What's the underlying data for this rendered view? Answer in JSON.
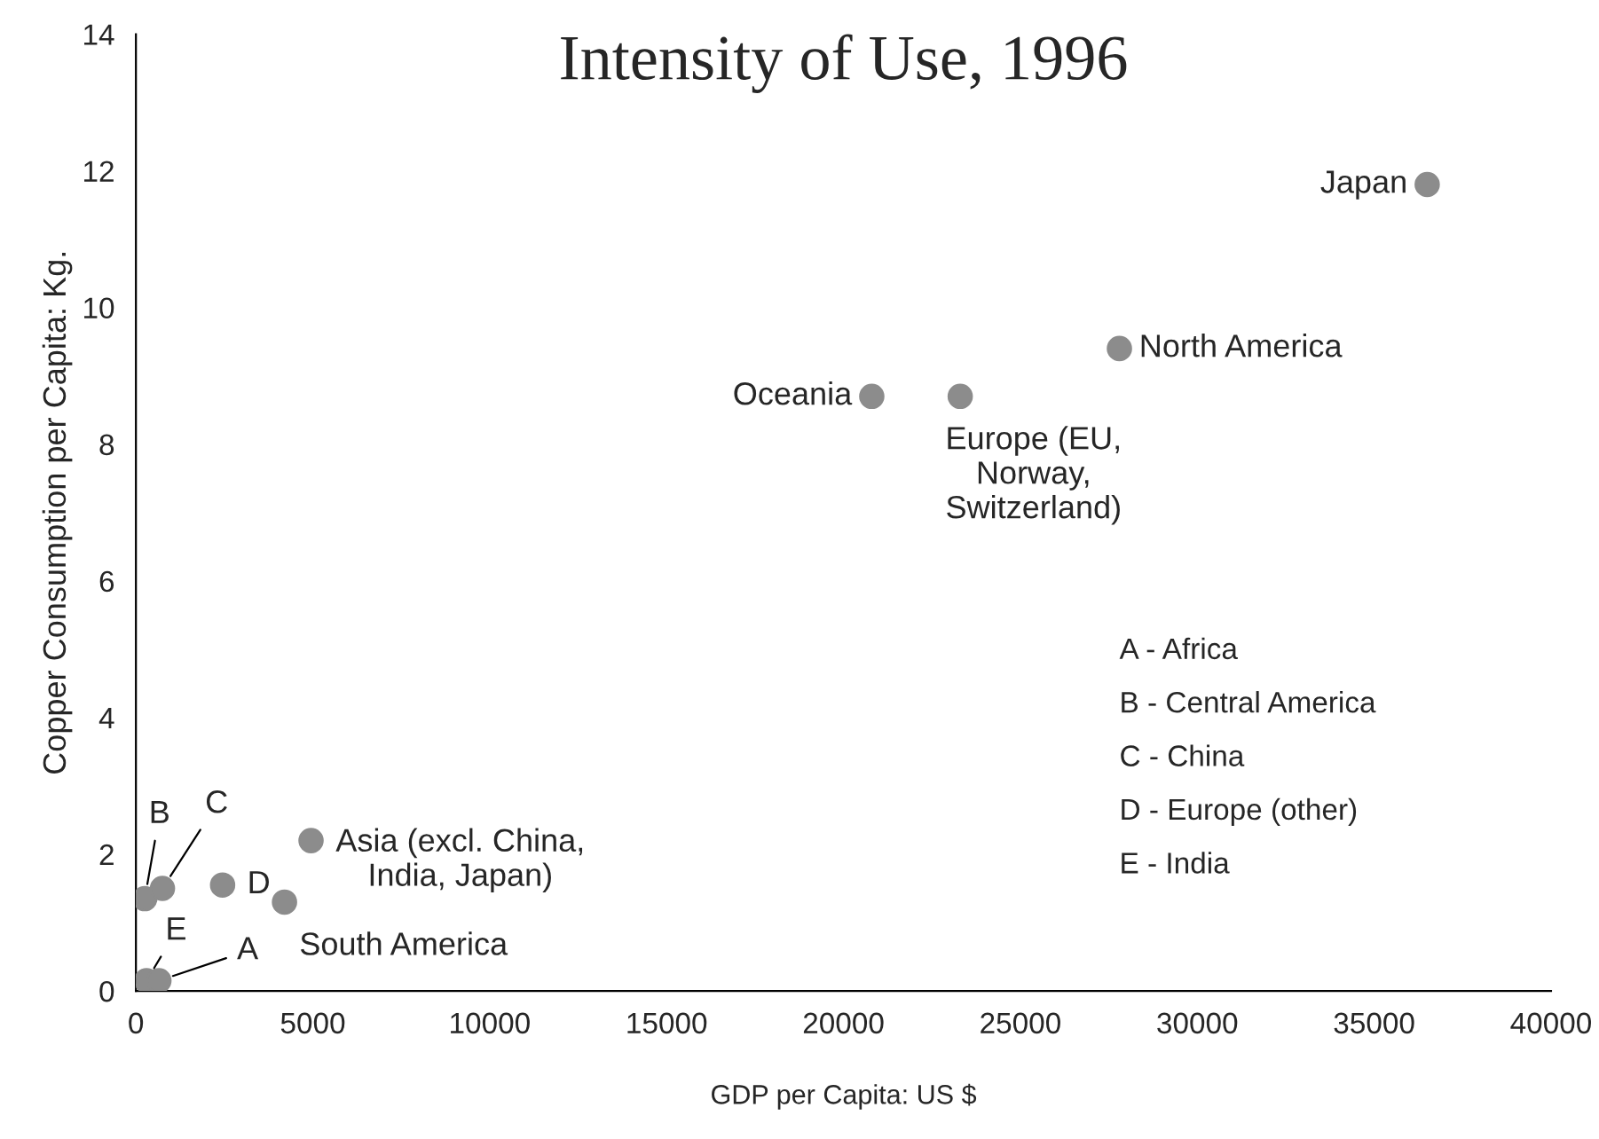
{
  "chart_data": {
    "type": "scatter",
    "title": "Intensity of Use, 1996",
    "xlabel": "GDP per Capita: US $",
    "ylabel": "Copper Consumption per Capita: Kg.",
    "series": [
      {
        "color": "#8c8c8c",
        "x": [
          36500,
          27800,
          20800,
          23300,
          4950,
          4200,
          250,
          750,
          2450,
          300,
          650
        ],
        "values": [
          11.8,
          9.4,
          8.7,
          8.7,
          2.2,
          1.3,
          1.35,
          1.5,
          1.55,
          0.15,
          0.15
        ]
      }
    ],
    "xlim": [
      0,
      40000
    ],
    "xticks": [
      0,
      5000,
      10000,
      15000,
      20000,
      25000,
      30000,
      35000,
      40000
    ],
    "ylim": [
      0,
      14
    ],
    "yticks": [
      0,
      2,
      4,
      6,
      8,
      10,
      12,
      14
    ],
    "marker": "circle",
    "grid": false,
    "annotations": [
      {
        "text": "Japan",
        "x": 36500,
        "y": 11.8
      },
      {
        "text": "North America",
        "x": 27800,
        "y": 9.4
      },
      {
        "text": "Oceania",
        "x": 20800,
        "y": 8.7
      },
      {
        "text": "Europe (EU,\nNorway,\nSwitzerland)",
        "x": 23300,
        "y": 8.7
      },
      {
        "text": "Asia (excl. China,\nIndia, Japan)",
        "x": 4950,
        "y": 2.2
      },
      {
        "text": "South America",
        "x": 4200,
        "y": 1.3
      },
      {
        "text": "B",
        "x": 250,
        "y": 1.35
      },
      {
        "text": "C",
        "x": 750,
        "y": 1.5
      },
      {
        "text": "D",
        "x": 2450,
        "y": 1.55
      },
      {
        "text": "E",
        "x": 300,
        "y": 0.15
      },
      {
        "text": "A",
        "x": 650,
        "y": 0.15
      },
      "A - Africa",
      "B - Central America",
      "C - China",
      "D - Europe (other)",
      "E - India"
    ]
  }
}
